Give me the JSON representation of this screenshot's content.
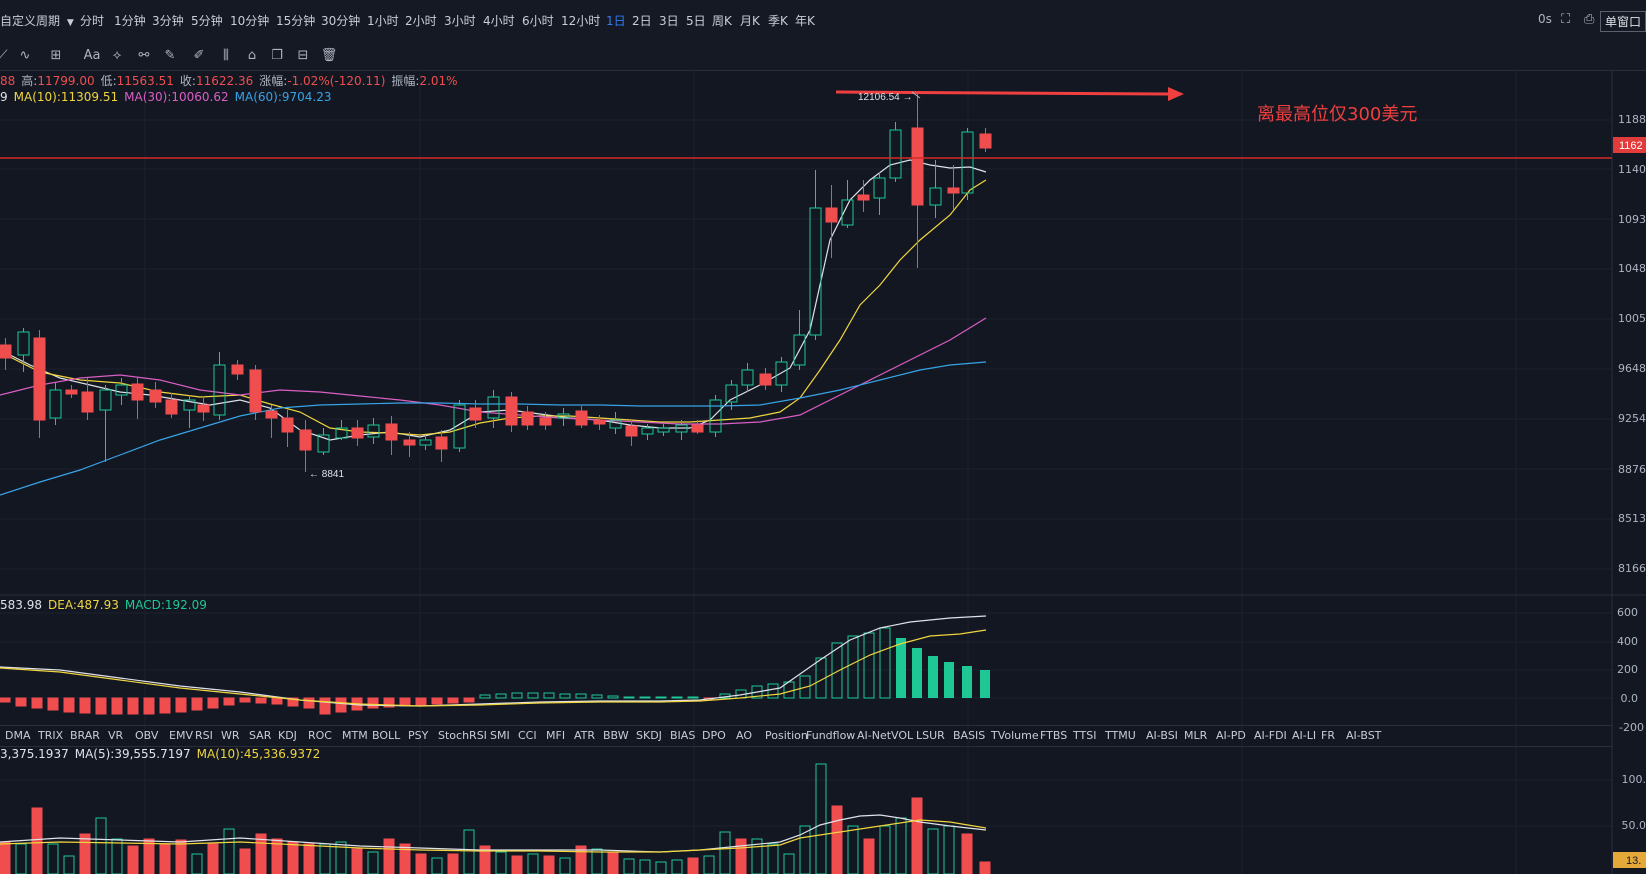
{
  "topbar": {
    "custom_period": "自定义周期",
    "periods": [
      "分时",
      "1分钟",
      "3分钟",
      "5分钟",
      "10分钟",
      "15分钟",
      "30分钟",
      "1小时",
      "2小时",
      "3小时",
      "4小时",
      "6小时",
      "12小时",
      "1日",
      "2日",
      "3日",
      "5日",
      "周K",
      "月K",
      "季K",
      "年K"
    ],
    "active_period": "1日",
    "timer": "0s",
    "split_label": "单窗口"
  },
  "toolbar_icons": [
    "line-tool-icon",
    "pattern-tool-icon",
    "grid-tool-icon",
    "text-tool-icon",
    "measure-tool-icon",
    "link-tool-icon",
    "ruler-tool-icon",
    "brush-tool-icon",
    "fib-tool-icon",
    "position-tool-icon",
    "copy-tool-icon",
    "template-tool-icon",
    "delete-tool-icon"
  ],
  "toolbar_text_label": "Aa",
  "ohlc": {
    "open_partial": "88",
    "high_label": "高:",
    "high": "11799.00",
    "low_label": "低:",
    "low": "11563.51",
    "close_label": "收:",
    "close": "11622.36",
    "change_label": "涨幅:",
    "change": "-1.02%(-120.11)",
    "amplitude_label": "振幅:",
    "amplitude": "2.01%"
  },
  "ma_legend": {
    "lead": "9",
    "ma10": "MA(10):11309.51",
    "ma30": "MA(30):10060.62",
    "ma60": "MA(60):9704.23"
  },
  "price_axis": [
    "1188",
    "1140",
    "1093",
    "1048",
    "1005",
    "9648",
    "9254",
    "8876",
    "8513",
    "8166"
  ],
  "price_badge": "1162",
  "annotations": {
    "high_marker": "12106.54 →",
    "low_marker": "← 8841",
    "note": "离最高位仅300美元"
  },
  "macd_legend": {
    "dif": "583.98",
    "dea": "DEA:487.93",
    "macd": "MACD:192.09"
  },
  "macd_axis": [
    "600",
    "400",
    "200",
    "0.0",
    "-200"
  ],
  "indicators": [
    "DMA",
    "TRIX",
    "BRAR",
    "VR",
    "OBV",
    "EMV",
    "RSI",
    "WR",
    "SAR",
    "KDJ",
    "ROC",
    "MTM",
    "BOLL",
    "PSY",
    "StochRSI",
    "SMI",
    "CCI",
    "MFI",
    "ATR",
    "BBW",
    "SKDJ",
    "BIAS",
    "DPO",
    "AO",
    "Position",
    "Fundflow",
    "AI-NetVOL",
    "LSUR",
    "BASIS",
    "TVolume",
    "FTBS",
    "TTSI",
    "TTMU",
    "AI-BSI",
    "MLR",
    "AI-PD",
    "AI-FDI",
    "AI-LI",
    "FR",
    "AI-BST"
  ],
  "volume_legend": {
    "vol": "3,375.1937",
    "ma5": "MA(5):39,555.7197",
    "ma10": "MA(10):45,336.9372"
  },
  "volume_axis": [
    "100.",
    "50.0"
  ],
  "volume_badge": "13.",
  "colors": {
    "up": "#1ec794",
    "down": "#f04e4e",
    "background": "#131722",
    "ma5": "#dfe2e8",
    "ma10": "#f0d63e",
    "ma30": "#d95fc4",
    "ma60": "#37a3e6"
  }
}
